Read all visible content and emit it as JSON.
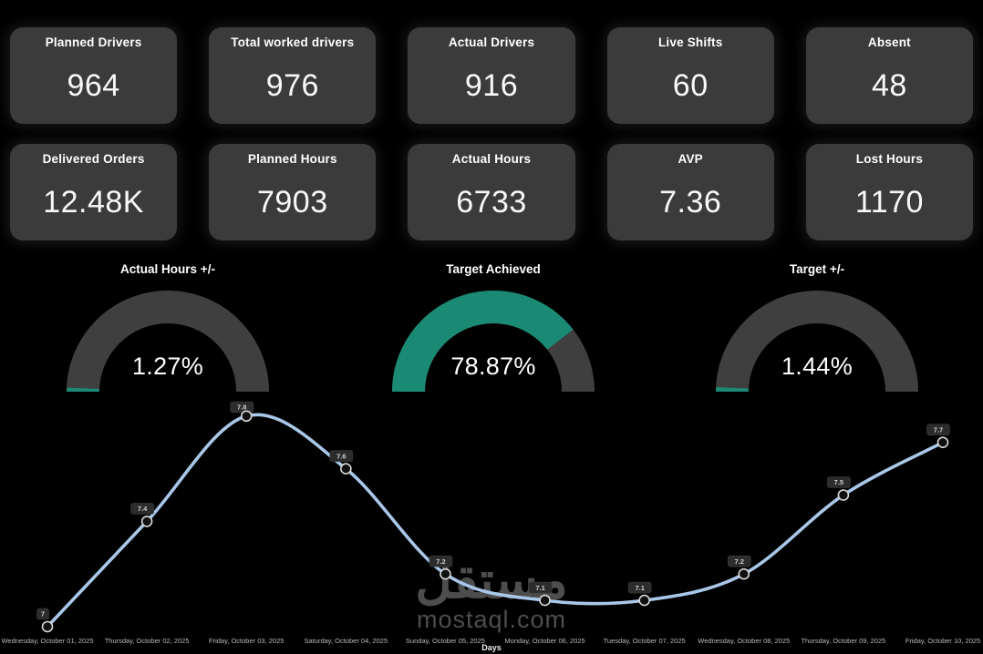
{
  "kpi_cards": {
    "row1": [
      {
        "label": "Planned Drivers",
        "value": "964"
      },
      {
        "label": "Total worked drivers",
        "value": "976"
      },
      {
        "label": "Actual Drivers",
        "value": "916"
      },
      {
        "label": "Live Shifts",
        "value": "60"
      },
      {
        "label": "Absent",
        "value": "48"
      }
    ],
    "row2": [
      {
        "label": "Delivered Orders",
        "value": "12.48K"
      },
      {
        "label": "Planned Hours",
        "value": "7903"
      },
      {
        "label": "Actual Hours",
        "value": "6733"
      },
      {
        "label": "AVP",
        "value": "7.36"
      },
      {
        "label": "Lost Hours",
        "value": "1170"
      }
    ]
  },
  "chart_data": [
    {
      "type": "gauge",
      "title": "Actual Hours +/-",
      "value_percent": 1.27,
      "value_label": "1.27%",
      "range_percent": [
        0,
        100
      ],
      "fill_color": "#1b8a74",
      "track_color": "#3f3f3f"
    },
    {
      "type": "gauge",
      "title": "Target Achieved",
      "value_percent": 78.87,
      "value_label": "78.87%",
      "range_percent": [
        0,
        100
      ],
      "fill_color": "#1b8a74",
      "track_color": "#3f3f3f"
    },
    {
      "type": "gauge",
      "title": "Target +/-",
      "value_percent": 1.44,
      "value_label": "1.44%",
      "range_percent": [
        0,
        100
      ],
      "fill_color": "#1b8a74",
      "track_color": "#3f3f3f"
    },
    {
      "type": "line",
      "x": [
        "Wednesday, October 01, 2025",
        "Thursday, October 02, 2025",
        "Friday, October 03, 2025",
        "Saturday, October 04, 2025",
        "Sunday, October 05, 2025",
        "Monday, October 06, 2025",
        "Tuesday, October 07, 2025",
        "Wednesday, October 08, 2025",
        "Thursday, October 09, 2025",
        "Friday, October 10, 2025"
      ],
      "values": [
        7,
        7.4,
        7.8,
        7.6,
        7.2,
        7.1,
        7.1,
        7.2,
        7.5,
        7.7
      ],
      "point_labels": [
        "7",
        "7.4",
        "7.8",
        "7.6",
        "7.2",
        "7.1",
        "7.1",
        "7.2",
        "7.5",
        "7.7"
      ],
      "xlabel": "Days",
      "ylim": [
        6.9,
        7.9
      ],
      "grid": false,
      "legend": "none",
      "line_color": "#a9c7e8",
      "marker_fill": "#101010",
      "marker_stroke": "#d9d9d9",
      "label_chip_bg": "#2c2c2c",
      "label_chip_text": "#d0d0d0",
      "axis_text_color": "#b9b9b9"
    }
  ],
  "watermark": {
    "arabic": "مستقل",
    "latin": "mostaql.com"
  },
  "colors": {
    "background": "#000000",
    "card_bg": "#3b3b3b",
    "card_text": "#ffffff",
    "accent_teal": "#1b8a74",
    "gauge_track": "#3f3f3f",
    "line_blue": "#a9c7e8"
  }
}
